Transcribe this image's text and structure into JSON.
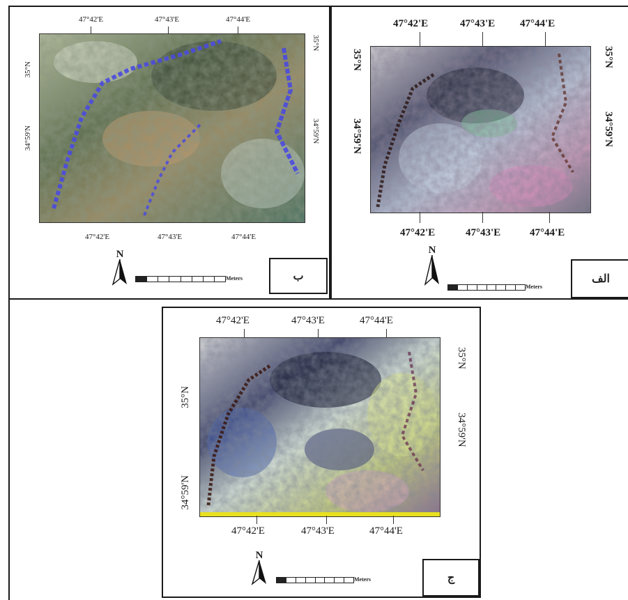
{
  "panels": {
    "b": {
      "top_labels": [
        "47°42'E",
        "47°43'E",
        "47°44'E"
      ],
      "bottom_labels": [
        "47°42'E",
        "47°43'E",
        "47°44'E"
      ],
      "left_labels": [
        "35°N",
        "34°59'N"
      ],
      "right_labels": [
        "35°N",
        "34°59'N"
      ],
      "north": "N",
      "scale_unit": "Meters",
      "panel_label": "ب"
    },
    "alef": {
      "top_labels": [
        "47°42'E",
        "47°43'E",
        "47°44'E"
      ],
      "bottom_labels": [
        "47°42'E",
        "47°43'E",
        "47°44'E"
      ],
      "left_labels": [
        "35°N",
        "34°59'N"
      ],
      "right_labels": [
        "35°N",
        "34°59'N"
      ],
      "north": "N",
      "scale_unit": "Meters",
      "panel_label": "الف"
    },
    "jim": {
      "top_labels": [
        "47°42'E",
        "47°43'E",
        "47°44'E"
      ],
      "bottom_labels": [
        "47°42'E",
        "47°43'E",
        "47°44'E"
      ],
      "left_labels": [
        "35°N",
        "34°59'N"
      ],
      "right_labels": [
        "35°N",
        "34°59'N"
      ],
      "north": "N",
      "scale_unit": "Meters",
      "panel_label": "ج"
    }
  },
  "colors": {
    "b_base": "#6f7f5c",
    "b_accent": "#4a4adf",
    "alef_base": "#8a8fa8",
    "jim_base": "#7c8a86"
  }
}
